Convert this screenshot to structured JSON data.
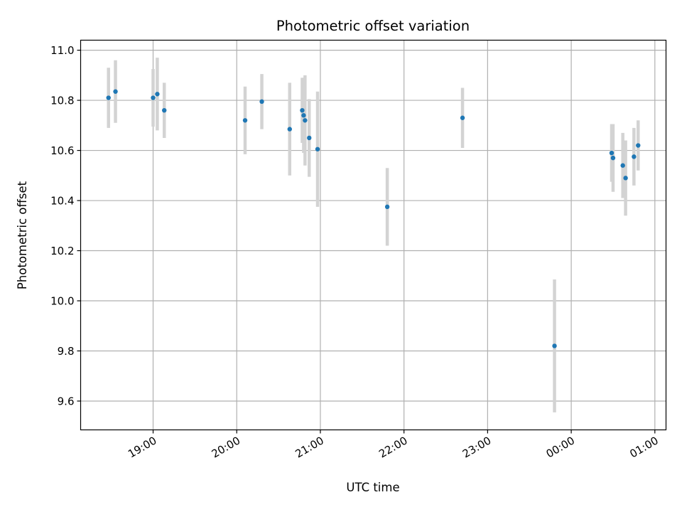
{
  "chart_data": {
    "type": "scatter",
    "title": "Photometric offset variation",
    "xlabel": "UTC time",
    "ylabel": "Photometric offset",
    "grid": true,
    "x_axis_kind": "time",
    "x_range": [
      "18:08",
      "01:08"
    ],
    "ylim": [
      9.485,
      11.04
    ],
    "x_ticks": [
      "19:00",
      "20:00",
      "21:00",
      "22:00",
      "23:00",
      "00:00",
      "01:00"
    ],
    "y_ticks": [
      "9.6",
      "9.8",
      "10.0",
      "10.2",
      "10.4",
      "10.6",
      "10.8",
      "11.0"
    ],
    "marker_color": "#1f77b4",
    "errorbar_color": "#d3d3d3",
    "points": [
      {
        "time": "18:28",
        "y": 10.81,
        "err": 0.12
      },
      {
        "time": "18:33",
        "y": 10.835,
        "err": 0.125
      },
      {
        "time": "19:00",
        "y": 10.81,
        "err": 0.115
      },
      {
        "time": "19:03",
        "y": 10.825,
        "err": 0.145
      },
      {
        "time": "19:08",
        "y": 10.76,
        "err": 0.11
      },
      {
        "time": "20:06",
        "y": 10.72,
        "err": 0.135
      },
      {
        "time": "20:18",
        "y": 10.795,
        "err": 0.11
      },
      {
        "time": "20:38",
        "y": 10.685,
        "err": 0.185
      },
      {
        "time": "20:47",
        "y": 10.76,
        "err": 0.13
      },
      {
        "time": "20:48",
        "y": 10.74,
        "err": 0.15
      },
      {
        "time": "20:49",
        "y": 10.72,
        "err": 0.18
      },
      {
        "time": "20:52",
        "y": 10.65,
        "err": 0.155
      },
      {
        "time": "20:58",
        "y": 10.605,
        "err": 0.23
      },
      {
        "time": "21:48",
        "y": 10.375,
        "err": 0.155
      },
      {
        "time": "22:42",
        "y": 10.73,
        "err": 0.12
      },
      {
        "time": "23:48",
        "y": 9.82,
        "err": 0.265
      },
      {
        "time": "00:29",
        "y": 10.59,
        "err": 0.115
      },
      {
        "time": "00:30",
        "y": 10.57,
        "err": 0.135
      },
      {
        "time": "00:37",
        "y": 10.54,
        "err": 0.13
      },
      {
        "time": "00:39",
        "y": 10.49,
        "err": 0.15
      },
      {
        "time": "00:45",
        "y": 10.575,
        "err": 0.115
      },
      {
        "time": "00:48",
        "y": 10.62,
        "err": 0.1
      }
    ]
  }
}
